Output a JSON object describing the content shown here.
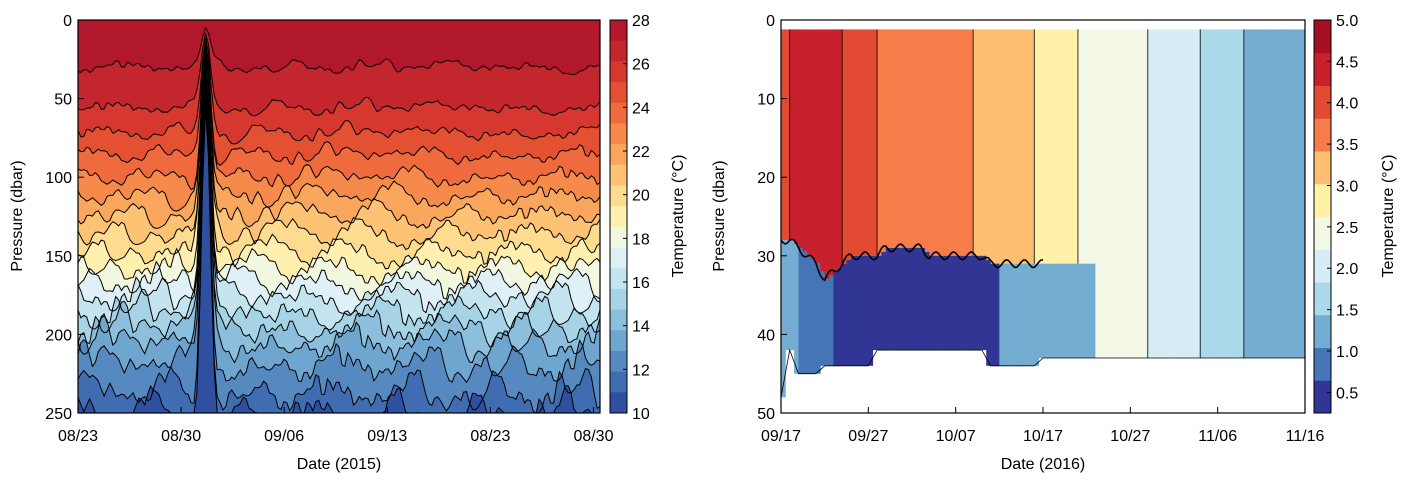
{
  "chart_data": [
    {
      "type": "heatmap",
      "xlabel": "Date (2015)",
      "ylabel": "Pressure (dbar)",
      "colorbar_label": "Temperature (°C)",
      "x_ticks": [
        "08/23",
        "08/30",
        "09/06",
        "09/13",
        "08/23",
        "08/30"
      ],
      "y_ticks": [
        "0",
        "50",
        "100",
        "150",
        "200",
        "250"
      ],
      "ylim": [
        250,
        0
      ],
      "color_range": [
        10,
        28
      ],
      "colorbar_ticks": [
        "10",
        "12",
        "14",
        "16",
        "18",
        "20",
        "22",
        "24",
        "26",
        "28"
      ],
      "levels": [
        28,
        27,
        26,
        25,
        24,
        23,
        22,
        21,
        20,
        19,
        18,
        17,
        16,
        15,
        14,
        13,
        12,
        11,
        10
      ],
      "level_depths": [
        0,
        30,
        56,
        72,
        86,
        100,
        112,
        124,
        136,
        148,
        158,
        167,
        176,
        186,
        196,
        206,
        220,
        238,
        252
      ],
      "colors": [
        "#b2182b",
        "#c3262c",
        "#d6382f",
        "#e35032",
        "#ef6a3c",
        "#f58a4b",
        "#fba65d",
        "#fdc273",
        "#fedc8f",
        "#fff0b0",
        "#f2f7e0",
        "#dff0f6",
        "#c4e4f0",
        "#a7d3e7",
        "#8bbfdc",
        "#6fa6cf",
        "#5689c0",
        "#406cb1",
        "#2f4fa0",
        "#2a3a92"
      ]
    },
    {
      "type": "heatmap",
      "xlabel": "Date (2016)",
      "ylabel": "Pressure (dbar)",
      "colorbar_label": "Temperature (°C)",
      "x_ticks": [
        "09/17",
        "09/27",
        "10/07",
        "10/17",
        "10/27",
        "11/06",
        "11/16"
      ],
      "y_ticks": [
        "0",
        "10",
        "20",
        "30",
        "40",
        "50"
      ],
      "ylim": [
        50,
        0
      ],
      "color_range": [
        0.25,
        5.0
      ],
      "colorbar_ticks": [
        "0.5",
        "1.0",
        "1.5",
        "2.0",
        "2.5",
        "3.0",
        "3.5",
        "4.0",
        "4.5",
        "5.0"
      ],
      "upper_layer_days": [
        0,
        1,
        4,
        5,
        6,
        7,
        8,
        9,
        10,
        11,
        12,
        13,
        14,
        15,
        16,
        17,
        18,
        19,
        20,
        21,
        22,
        23,
        24,
        25,
        26,
        27,
        28,
        29,
        30,
        31,
        32,
        33,
        34,
        35,
        36,
        37,
        38,
        39,
        40,
        41,
        42,
        43,
        44,
        45,
        46,
        47,
        48,
        49,
        50,
        51,
        52,
        53,
        54,
        55,
        56,
        57,
        58,
        59,
        60
      ],
      "upper_layer_temps": [
        4.0,
        4.4,
        4.4,
        4.6,
        4.6,
        4.4,
        4.3,
        4.2,
        4.0,
        4.0,
        3.9,
        3.7,
        3.7,
        3.7,
        3.7,
        3.7,
        3.7,
        3.7,
        3.7,
        3.7,
        3.7,
        3.7,
        3.2,
        3.2,
        3.2,
        3.2,
        3.2,
        3.2,
        3.2,
        2.8,
        2.8,
        2.8,
        2.8,
        2.8,
        2.3,
        2.3,
        2.3,
        2.3,
        2.3,
        2.3,
        2.3,
        2.3,
        1.9,
        1.9,
        1.9,
        1.9,
        1.9,
        1.9,
        1.6,
        1.6,
        1.6,
        1.6,
        1.6,
        1.2,
        1.2,
        1.2,
        1.2,
        1.2,
        1.2
      ],
      "interface_depth": [
        28,
        28,
        29,
        30,
        31,
        33,
        32,
        31,
        30,
        30,
        30,
        30,
        29,
        29,
        29,
        29,
        29,
        30,
        30,
        30,
        30,
        30,
        30,
        30,
        31,
        31,
        31,
        31,
        31,
        31,
        31
      ],
      "lower_layer_depth": [
        48,
        42,
        45,
        45,
        45,
        44,
        44,
        44,
        44,
        44,
        44,
        42,
        42,
        42,
        42,
        42,
        42,
        42,
        42,
        42,
        42,
        42,
        42,
        42,
        44,
        44,
        44,
        44,
        44,
        44,
        43,
        43,
        43,
        43,
        43,
        43,
        43,
        43,
        43,
        43,
        43,
        43,
        43,
        43,
        43,
        43,
        43,
        43,
        43,
        43,
        43,
        43,
        43,
        43,
        43,
        43,
        43,
        43,
        43,
        43,
        43
      ],
      "colors": [
        "#313695",
        "#4575b4",
        "#74add1",
        "#abd9e9",
        "#d6edf5",
        "#f3f8e6",
        "#fff2a8",
        "#fdbf6f",
        "#f67d4a",
        "#e34a33",
        "#c8202d",
        "#a50f22"
      ]
    }
  ]
}
